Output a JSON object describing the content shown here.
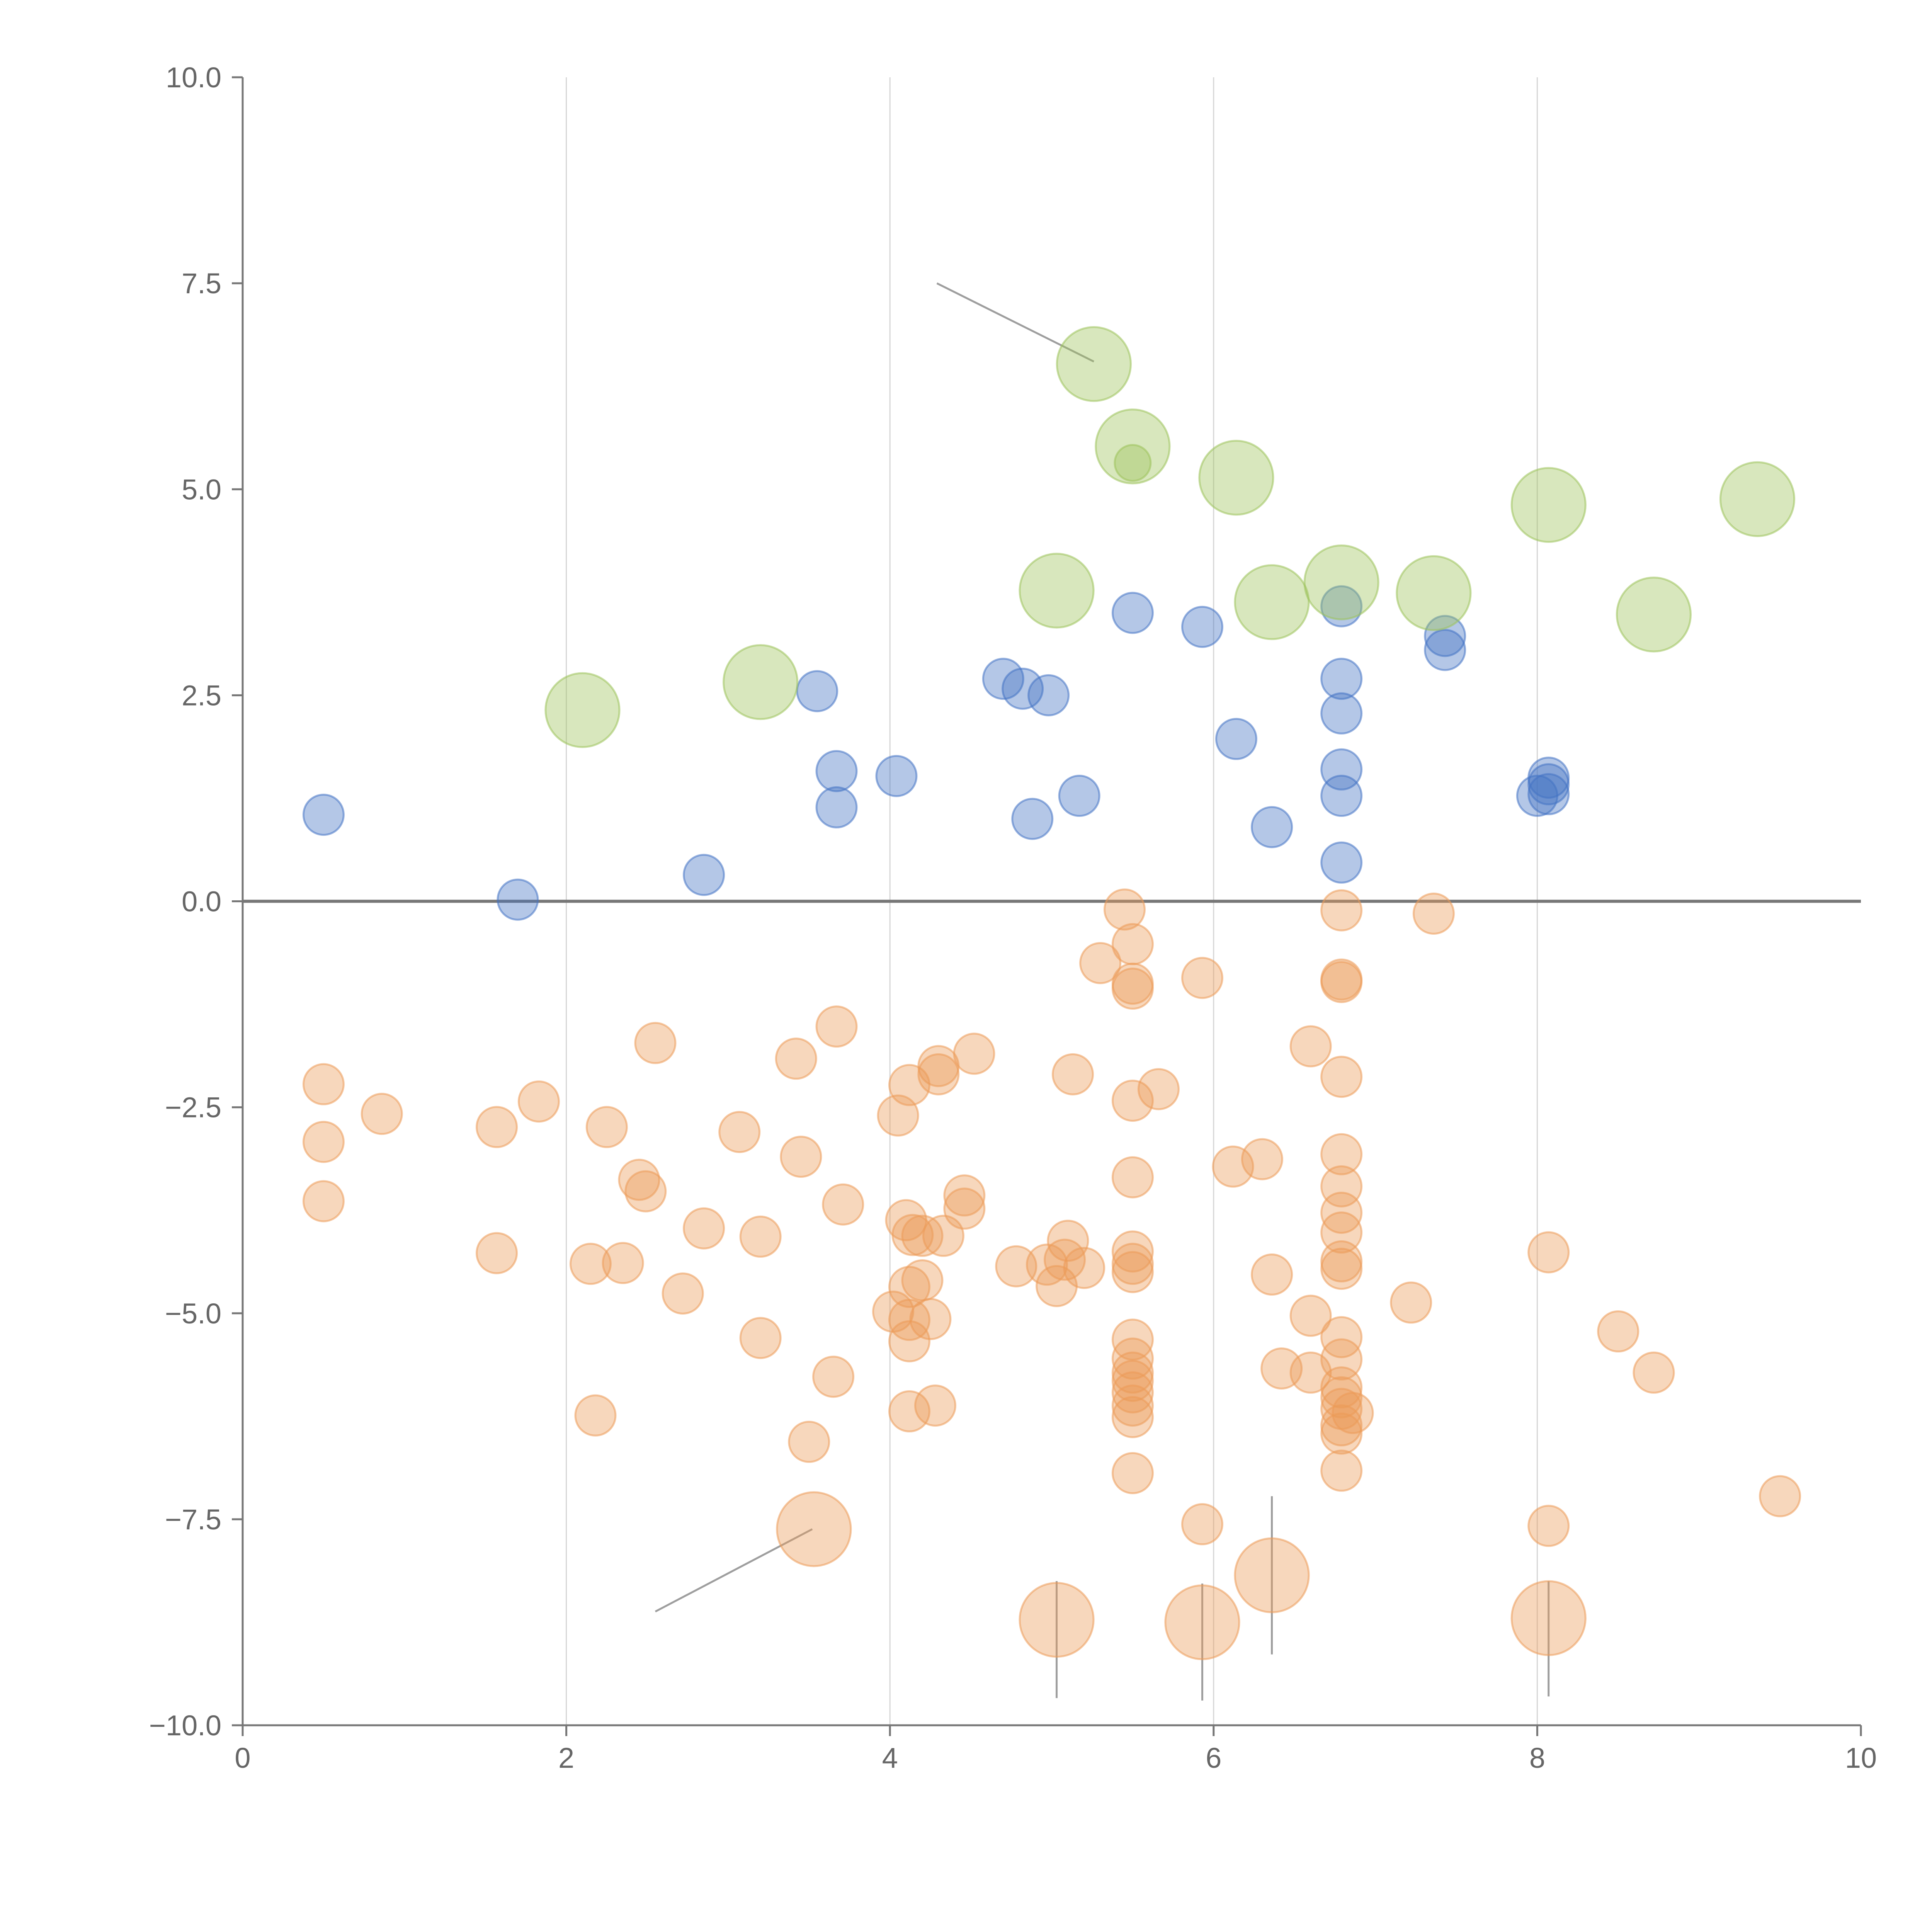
{
  "chart_data": {
    "type": "scatter",
    "title": "",
    "xlabel": "",
    "ylabel": "",
    "xlim": [
      0,
      10
    ],
    "ylim": [
      -10,
      10
    ],
    "grid": "vertical",
    "x_ticks": [
      0,
      2,
      4,
      6,
      8,
      10
    ],
    "x_tick_labels": [
      "0",
      "2",
      "4",
      "6",
      "8",
      "10"
    ],
    "y_ticks": [
      10,
      7.5,
      5,
      2.5,
      0,
      -2.5,
      -5,
      -7.5,
      -10
    ],
    "y_tick_labels": [
      "10.0",
      "7.5",
      "5.0",
      "2.5",
      "0.0",
      "−2.5",
      "−5.0",
      "−7.5",
      "−10.0"
    ],
    "series": [
      {
        "name": "blue",
        "color": "#4472c4",
        "points": [
          {
            "x": 0.5,
            "y": 1.05,
            "size": 1
          },
          {
            "x": 1.7,
            "y": 0.02,
            "size": 1
          },
          {
            "x": 2.85,
            "y": 0.32,
            "size": 1
          },
          {
            "x": 3.55,
            "y": 2.55,
            "size": 1
          },
          {
            "x": 3.67,
            "y": 1.58,
            "size": 1
          },
          {
            "x": 3.67,
            "y": 1.14,
            "size": 1
          },
          {
            "x": 4.04,
            "y": 1.52,
            "size": 1
          },
          {
            "x": 4.7,
            "y": 2.7,
            "size": 1
          },
          {
            "x": 4.82,
            "y": 2.58,
            "size": 1
          },
          {
            "x": 4.98,
            "y": 2.5,
            "size": 1
          },
          {
            "x": 4.88,
            "y": 1.0,
            "size": 1
          },
          {
            "x": 5.17,
            "y": 1.28,
            "size": 1
          },
          {
            "x": 5.5,
            "y": 3.5,
            "size": 1
          },
          {
            "x": 5.93,
            "y": 3.33,
            "size": 1
          },
          {
            "x": 6.14,
            "y": 1.97,
            "size": 1
          },
          {
            "x": 6.36,
            "y": 0.9,
            "size": 1
          },
          {
            "x": 6.79,
            "y": 3.58,
            "size": 1
          },
          {
            "x": 6.79,
            "y": 2.7,
            "size": 1
          },
          {
            "x": 6.79,
            "y": 2.28,
            "size": 1
          },
          {
            "x": 6.79,
            "y": 1.6,
            "size": 1
          },
          {
            "x": 6.79,
            "y": 1.28,
            "size": 1
          },
          {
            "x": 6.79,
            "y": 0.47,
            "size": 1
          },
          {
            "x": 7.43,
            "y": 3.22,
            "size": 1
          },
          {
            "x": 7.43,
            "y": 3.05,
            "size": 1
          },
          {
            "x": 8.0,
            "y": 1.28,
            "size": 1
          },
          {
            "x": 8.07,
            "y": 1.5,
            "size": 1
          },
          {
            "x": 8.07,
            "y": 1.42,
            "size": 1
          },
          {
            "x": 8.07,
            "y": 1.3,
            "size": 1
          }
        ]
      },
      {
        "name": "green",
        "color": "#9dc35b",
        "points": [
          {
            "x": 2.1,
            "y": 2.32,
            "size": 2
          },
          {
            "x": 3.2,
            "y": 2.66,
            "size": 2
          },
          {
            "x": 5.03,
            "y": 3.77,
            "size": 2
          },
          {
            "x": 5.26,
            "y": 6.52,
            "size": 2
          },
          {
            "x": 5.5,
            "y": 5.52,
            "size": 2
          },
          {
            "x": 5.5,
            "y": 5.32,
            "size": 0.8
          },
          {
            "x": 6.14,
            "y": 5.14,
            "size": 2
          },
          {
            "x": 6.36,
            "y": 3.63,
            "size": 2
          },
          {
            "x": 6.79,
            "y": 3.87,
            "size": 2
          },
          {
            "x": 7.36,
            "y": 3.74,
            "size": 2
          },
          {
            "x": 8.07,
            "y": 4.81,
            "size": 2
          },
          {
            "x": 8.72,
            "y": 3.48,
            "size": 2
          },
          {
            "x": 9.36,
            "y": 4.88,
            "size": 2
          }
        ]
      },
      {
        "name": "orange",
        "color": "#ec9b57",
        "points": [
          {
            "x": 0.5,
            "y": -2.22,
            "size": 1
          },
          {
            "x": 0.5,
            "y": -2.92,
            "size": 1
          },
          {
            "x": 0.5,
            "y": -3.64,
            "size": 1
          },
          {
            "x": 0.86,
            "y": -2.58,
            "size": 1
          },
          {
            "x": 1.57,
            "y": -2.74,
            "size": 1
          },
          {
            "x": 1.57,
            "y": -4.27,
            "size": 1
          },
          {
            "x": 1.83,
            "y": -2.43,
            "size": 1
          },
          {
            "x": 2.15,
            "y": -4.4,
            "size": 1
          },
          {
            "x": 2.18,
            "y": -6.24,
            "size": 1
          },
          {
            "x": 2.25,
            "y": -2.74,
            "size": 1
          },
          {
            "x": 2.35,
            "y": -4.39,
            "size": 1
          },
          {
            "x": 2.45,
            "y": -3.38,
            "size": 1
          },
          {
            "x": 2.49,
            "y": -3.52,
            "size": 1
          },
          {
            "x": 2.55,
            "y": -1.72,
            "size": 1
          },
          {
            "x": 2.72,
            "y": -4.76,
            "size": 1
          },
          {
            "x": 2.85,
            "y": -3.97,
            "size": 1
          },
          {
            "x": 3.07,
            "y": -2.8,
            "size": 1
          },
          {
            "x": 3.2,
            "y": -4.07,
            "size": 1
          },
          {
            "x": 3.2,
            "y": -5.3,
            "size": 1
          },
          {
            "x": 3.42,
            "y": -1.91,
            "size": 1
          },
          {
            "x": 3.45,
            "y": -3.1,
            "size": 1
          },
          {
            "x": 3.5,
            "y": -6.56,
            "size": 1
          },
          {
            "x": 3.65,
            "y": -5.77,
            "size": 1
          },
          {
            "x": 3.67,
            "y": -1.52,
            "size": 1
          },
          {
            "x": 3.71,
            "y": -3.68,
            "size": 1
          },
          {
            "x": 4.05,
            "y": -2.6,
            "size": 1
          },
          {
            "x": 4.02,
            "y": -4.98,
            "size": 1
          },
          {
            "x": 4.1,
            "y": -3.87,
            "size": 1
          },
          {
            "x": 4.12,
            "y": -2.23,
            "size": 1
          },
          {
            "x": 4.14,
            "y": -4.05,
            "size": 1
          },
          {
            "x": 4.12,
            "y": -4.68,
            "size": 1
          },
          {
            "x": 4.12,
            "y": -5.08,
            "size": 1
          },
          {
            "x": 4.12,
            "y": -5.34,
            "size": 1
          },
          {
            "x": 4.12,
            "y": -6.19,
            "size": 1
          },
          {
            "x": 4.2,
            "y": -4.06,
            "size": 1
          },
          {
            "x": 4.2,
            "y": -4.6,
            "size": 1
          },
          {
            "x": 4.25,
            "y": -5.07,
            "size": 1
          },
          {
            "x": 4.28,
            "y": -6.12,
            "size": 1
          },
          {
            "x": 4.3,
            "y": -2.0,
            "size": 1
          },
          {
            "x": 4.3,
            "y": -2.1,
            "size": 1
          },
          {
            "x": 4.33,
            "y": -4.06,
            "size": 1
          },
          {
            "x": 4.46,
            "y": -3.57,
            "size": 1
          },
          {
            "x": 4.46,
            "y": -3.73,
            "size": 1
          },
          {
            "x": 4.52,
            "y": -1.85,
            "size": 1
          },
          {
            "x": 4.78,
            "y": -4.43,
            "size": 1
          },
          {
            "x": 4.97,
            "y": -4.41,
            "size": 1
          },
          {
            "x": 5.03,
            "y": -4.67,
            "size": 1
          },
          {
            "x": 5.08,
            "y": -4.35,
            "size": 1
          },
          {
            "x": 5.1,
            "y": -4.12,
            "size": 1
          },
          {
            "x": 5.13,
            "y": -2.1,
            "size": 1
          },
          {
            "x": 5.2,
            "y": -4.45,
            "size": 1
          },
          {
            "x": 5.45,
            "y": -0.1,
            "size": 1
          },
          {
            "x": 5.3,
            "y": -0.75,
            "size": 1
          },
          {
            "x": 5.5,
            "y": -0.52,
            "size": 1
          },
          {
            "x": 5.5,
            "y": -1.0,
            "size": 1
          },
          {
            "x": 5.5,
            "y": -1.06,
            "size": 1
          },
          {
            "x": 5.5,
            "y": -2.42,
            "size": 1
          },
          {
            "x": 5.5,
            "y": -3.35,
            "size": 1
          },
          {
            "x": 5.5,
            "y": -4.25,
            "size": 1
          },
          {
            "x": 5.5,
            "y": -4.4,
            "size": 1
          },
          {
            "x": 5.5,
            "y": -4.5,
            "size": 1
          },
          {
            "x": 5.5,
            "y": -5.32,
            "size": 1
          },
          {
            "x": 5.5,
            "y": -5.55,
            "size": 1
          },
          {
            "x": 5.5,
            "y": -5.72,
            "size": 1
          },
          {
            "x": 5.5,
            "y": -5.82,
            "size": 1
          },
          {
            "x": 5.5,
            "y": -5.96,
            "size": 1
          },
          {
            "x": 5.5,
            "y": -6.12,
            "size": 1
          },
          {
            "x": 5.5,
            "y": -6.26,
            "size": 1
          },
          {
            "x": 5.5,
            "y": -6.94,
            "size": 1
          },
          {
            "x": 5.66,
            "y": -2.28,
            "size": 1
          },
          {
            "x": 5.93,
            "y": -0.93,
            "size": 1
          },
          {
            "x": 5.93,
            "y": -7.56,
            "size": 1
          },
          {
            "x": 6.12,
            "y": -3.22,
            "size": 1
          },
          {
            "x": 6.3,
            "y": -3.13,
            "size": 1
          },
          {
            "x": 6.36,
            "y": -4.53,
            "size": 1
          },
          {
            "x": 6.42,
            "y": -5.67,
            "size": 1
          },
          {
            "x": 6.6,
            "y": -5.03,
            "size": 1
          },
          {
            "x": 6.6,
            "y": -5.72,
            "size": 1
          },
          {
            "x": 6.6,
            "y": -1.76,
            "size": 1
          },
          {
            "x": 6.79,
            "y": -0.11,
            "size": 1
          },
          {
            "x": 6.79,
            "y": -0.95,
            "size": 1
          },
          {
            "x": 6.79,
            "y": -0.98,
            "size": 1
          },
          {
            "x": 6.79,
            "y": -2.13,
            "size": 1
          },
          {
            "x": 6.79,
            "y": -3.07,
            "size": 1
          },
          {
            "x": 6.79,
            "y": -3.46,
            "size": 1
          },
          {
            "x": 6.79,
            "y": -3.78,
            "size": 1
          },
          {
            "x": 6.79,
            "y": -4.02,
            "size": 1
          },
          {
            "x": 6.79,
            "y": -4.37,
            "size": 1
          },
          {
            "x": 6.79,
            "y": -4.46,
            "size": 1
          },
          {
            "x": 6.79,
            "y": -5.29,
            "size": 1
          },
          {
            "x": 6.79,
            "y": -5.56,
            "size": 1
          },
          {
            "x": 6.79,
            "y": -5.9,
            "size": 1
          },
          {
            "x": 6.79,
            "y": -6.02,
            "size": 1
          },
          {
            "x": 6.79,
            "y": -6.16,
            "size": 1
          },
          {
            "x": 6.79,
            "y": -6.36,
            "size": 1
          },
          {
            "x": 6.79,
            "y": -6.46,
            "size": 1
          },
          {
            "x": 6.79,
            "y": -6.91,
            "size": 1
          },
          {
            "x": 6.86,
            "y": -6.21,
            "size": 1
          },
          {
            "x": 7.22,
            "y": -4.87,
            "size": 1
          },
          {
            "x": 7.36,
            "y": -0.15,
            "size": 1
          },
          {
            "x": 8.07,
            "y": -4.26,
            "size": 1
          },
          {
            "x": 8.07,
            "y": -7.58,
            "size": 1
          },
          {
            "x": 8.5,
            "y": -5.22,
            "size": 1
          },
          {
            "x": 8.72,
            "y": -5.72,
            "size": 1
          },
          {
            "x": 9.5,
            "y": -7.22,
            "size": 1
          },
          {
            "x": 3.53,
            "y": -7.62,
            "size": 2
          },
          {
            "x": 5.03,
            "y": -8.72,
            "size": 2
          },
          {
            "x": 5.93,
            "y": -8.75,
            "size": 2
          },
          {
            "x": 6.36,
            "y": -8.18,
            "size": 2
          },
          {
            "x": 8.07,
            "y": -8.7,
            "size": 2
          }
        ]
      }
    ],
    "annotations": [
      {
        "x1": 4.29,
        "y1": 7.5,
        "x2": 5.26,
        "y2": 6.55,
        "color": "#9e9e9e"
      },
      {
        "x1": 2.55,
        "y1": -8.62,
        "x2": 3.52,
        "y2": -7.62,
        "color": "#9e9e9e"
      },
      {
        "x1": 5.03,
        "y1": -8.25,
        "x2": 5.03,
        "y2": -9.67,
        "color": "#9e9e9e"
      },
      {
        "x1": 5.93,
        "y1": -8.28,
        "x2": 5.93,
        "y2": -9.7,
        "color": "#9e9e9e"
      },
      {
        "x1": 6.36,
        "y1": -7.22,
        "x2": 6.36,
        "y2": -9.14,
        "color": "#9e9e9e"
      },
      {
        "x1": 8.07,
        "y1": -8.25,
        "x2": 8.07,
        "y2": -9.65,
        "color": "#9e9e9e"
      }
    ]
  }
}
